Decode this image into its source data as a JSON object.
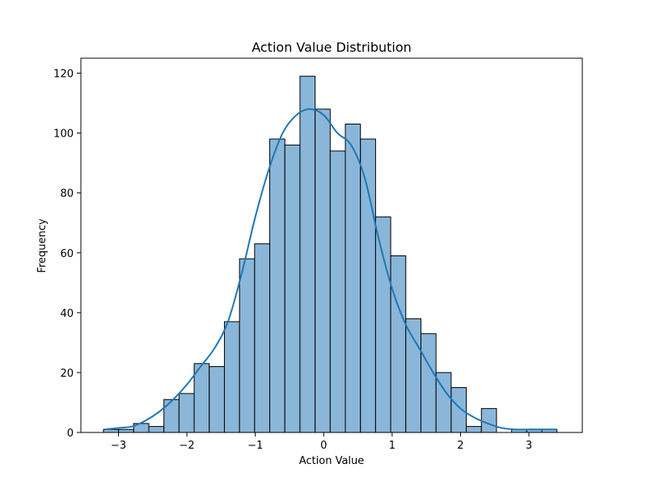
{
  "chart_data": {
    "type": "bar",
    "title": "Action Value Distribution",
    "xlabel": "Action Value",
    "ylabel": "Frequency",
    "xlim": [
      -3.55,
      3.78
    ],
    "ylim": [
      0,
      125
    ],
    "xticks": [
      -3,
      -2,
      -1,
      0,
      1,
      2,
      3
    ],
    "yticks": [
      0,
      20,
      40,
      60,
      80,
      100,
      120
    ],
    "xtick_labels": [
      "−3",
      "−2",
      "−1",
      "0",
      "1",
      "2",
      "3"
    ],
    "ytick_labels": [
      "0",
      "20",
      "40",
      "60",
      "80",
      "100",
      "120"
    ],
    "bin_edges": [
      -3.22,
      -2.999,
      -2.778,
      -2.557,
      -2.336,
      -2.115,
      -1.894,
      -1.673,
      -1.452,
      -1.231,
      -1.01,
      -0.789,
      -0.568,
      -0.347,
      -0.126,
      0.095,
      0.316,
      0.537,
      0.758,
      0.979,
      1.2,
      1.421,
      1.642,
      1.863,
      2.084,
      2.305,
      2.526,
      2.747,
      2.968,
      3.189,
      3.41
    ],
    "values": [
      1,
      1,
      3,
      2,
      11,
      13,
      23,
      22,
      37,
      58,
      63,
      98,
      96,
      119,
      108,
      94,
      103,
      98,
      72,
      59,
      38,
      33,
      20,
      15,
      2,
      8,
      0,
      1,
      1,
      1
    ],
    "kde": {
      "x": [
        -3.2,
        -3.0,
        -2.8,
        -2.6,
        -2.4,
        -2.2,
        -2.0,
        -1.8,
        -1.6,
        -1.4,
        -1.2,
        -1.0,
        -0.8,
        -0.6,
        -0.4,
        -0.2,
        0.0,
        0.2,
        0.4,
        0.6,
        0.8,
        1.0,
        1.2,
        1.4,
        1.6,
        1.8,
        2.0,
        2.2,
        2.4,
        2.6,
        2.8,
        3.0,
        3.2,
        3.4
      ],
      "y": [
        1,
        1.5,
        2,
        4,
        7,
        11,
        16,
        22,
        28,
        37,
        53,
        72,
        88,
        100,
        106,
        108,
        106,
        100,
        96,
        85,
        65,
        48,
        36,
        28,
        20,
        13,
        8,
        5,
        3,
        1.5,
        1,
        1,
        1,
        1
      ]
    },
    "grid": false,
    "legend": "none",
    "colors": {
      "bar_fill": "#8ab6d9",
      "bar_edge": "#000000",
      "kde_line": "#1f77b4"
    }
  }
}
